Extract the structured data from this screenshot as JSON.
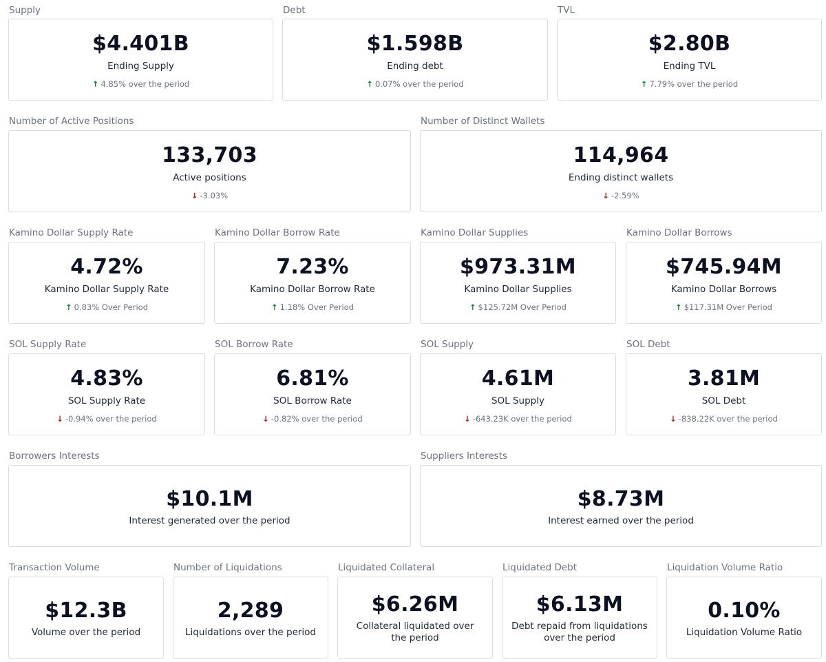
{
  "colors": {
    "up": "#15803d",
    "down": "#b91c1c",
    "card_border": "#d9dce1",
    "label": "#6b7280"
  },
  "icons": {
    "up": "arrow-up-icon",
    "down": "arrow-down-icon"
  },
  "supply": {
    "title": "Supply",
    "value": "$4.401B",
    "subtitle": "Ending Supply",
    "delta": "4.85% over the period",
    "direction": "up"
  },
  "debt": {
    "title": "Debt",
    "value": "$1.598B",
    "subtitle": "Ending debt",
    "delta": "0.07% over the period",
    "direction": "up"
  },
  "tvl": {
    "title": "TVL",
    "value": "$2.80B",
    "subtitle": "Ending TVL",
    "delta": "7.79% over the period",
    "direction": "up"
  },
  "active_positions": {
    "title": "Number of Active Positions",
    "value": "133,703",
    "subtitle": "Active positions",
    "delta": "-3.03%",
    "direction": "down"
  },
  "distinct_wallets": {
    "title": "Number of Distinct Wallets",
    "value": "114,964",
    "subtitle": "Ending distinct wallets",
    "delta": "-2.59%",
    "direction": "down"
  },
  "kd_supply_rate": {
    "title": "Kamino Dollar Supply Rate",
    "value": "4.72%",
    "subtitle": "Kamino Dollar Supply Rate",
    "delta": "0.83% Over Period",
    "direction": "up"
  },
  "kd_borrow_rate": {
    "title": "Kamino Dollar Borrow Rate",
    "value": "7.23%",
    "subtitle": "Kamino Dollar Borrow Rate",
    "delta": "1.18% Over Period",
    "direction": "up"
  },
  "kd_supplies": {
    "title": "Kamino Dollar Supplies",
    "value": "$973.31M",
    "subtitle": "Kamino Dollar Supplies",
    "delta": "$125.72M Over Period",
    "direction": "up"
  },
  "kd_borrows": {
    "title": "Kamino Dollar Borrows",
    "value": "$745.94M",
    "subtitle": "Kamino Dollar Borrows",
    "delta": "$117.31M Over Period",
    "direction": "up"
  },
  "sol_supply_rate": {
    "title": "SOL Supply Rate",
    "value": "4.83%",
    "subtitle": "SOL Supply Rate",
    "delta": "-0.94% over the period",
    "direction": "down"
  },
  "sol_borrow_rate": {
    "title": "SOL Borrow Rate",
    "value": "6.81%",
    "subtitle": "SOL Borrow Rate",
    "delta": "-0.82% over the period",
    "direction": "down"
  },
  "sol_supply": {
    "title": "SOL Supply",
    "value": "4.61M",
    "subtitle": "SOL Supply",
    "delta": "-643.23K over the period",
    "direction": "down"
  },
  "sol_debt": {
    "title": "SOL Debt",
    "value": "3.81M",
    "subtitle": "SOL Debt",
    "delta": "-838.22K over the period",
    "direction": "down"
  },
  "borrowers_interests": {
    "title": "Borrowers Interests",
    "value": "$10.1M",
    "subtitle": "Interest generated over the period"
  },
  "suppliers_interests": {
    "title": "Suppliers Interests",
    "value": "$8.73M",
    "subtitle": "Interest earned over the period"
  },
  "transaction_volume": {
    "title": "Transaction Volume",
    "value": "$12.3B",
    "subtitle": "Volume over the period"
  },
  "liquidations": {
    "title": "Number of Liquidations",
    "value": "2,289",
    "subtitle": "Liquidations over the period"
  },
  "liquidated_collateral": {
    "title": "Liquidated Collateral",
    "value": "$6.26M",
    "subtitle": "Collateral liquidated over the period"
  },
  "liquidated_debt": {
    "title": "Liquidated Debt",
    "value": "$6.13M",
    "subtitle": "Debt repaid from liquidations over the period"
  },
  "liquidation_ratio": {
    "title": "Liquidation Volume Ratio",
    "value": "0.10%",
    "subtitle": "Liquidation Volume Ratio"
  }
}
